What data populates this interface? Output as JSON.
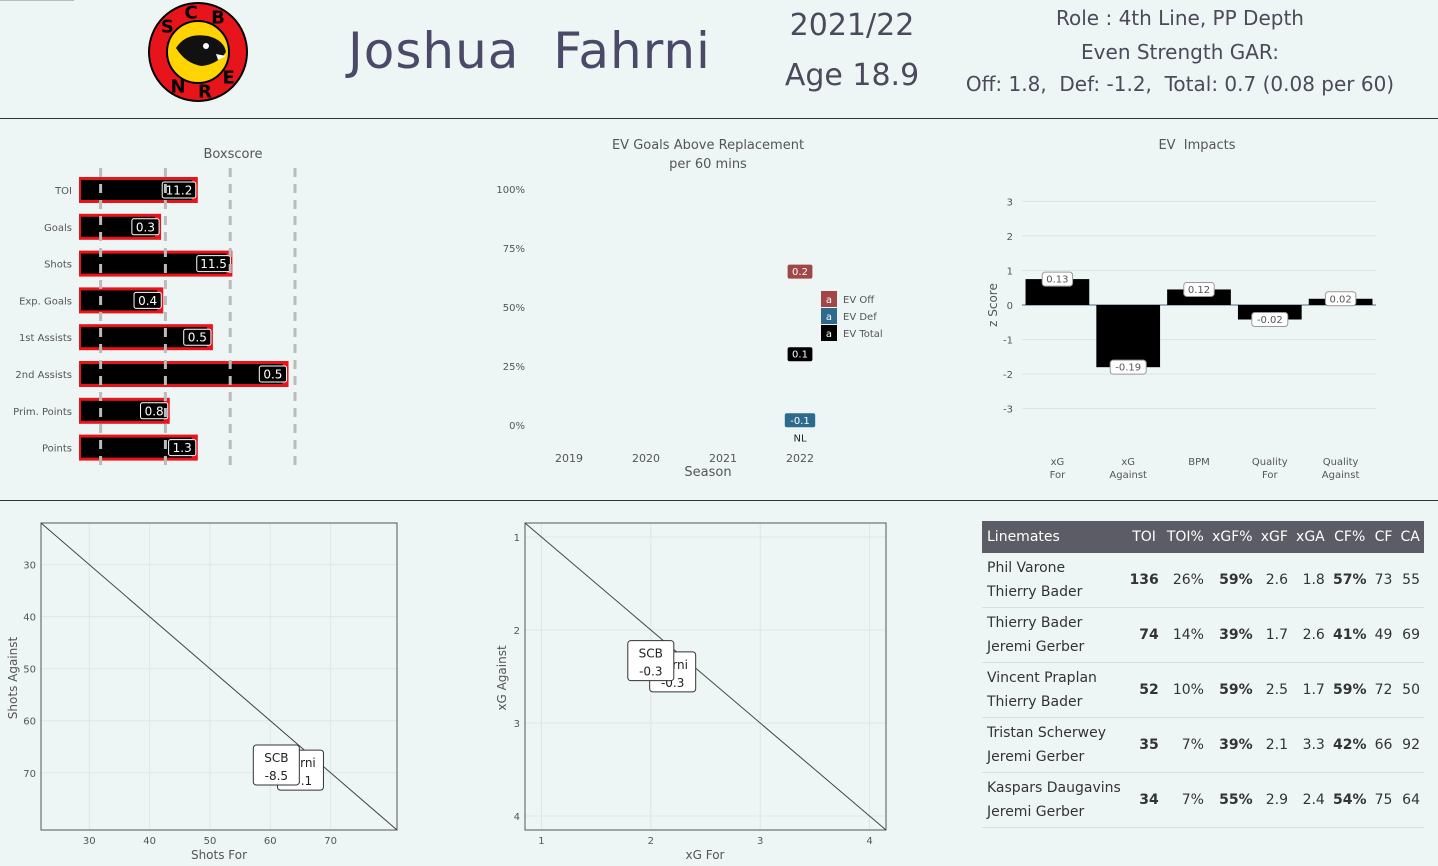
{
  "header": {
    "team_logo": "SC Bern bear logo",
    "logo_letters": [
      "S",
      "C",
      "B",
      "E",
      "R",
      "N"
    ],
    "player_name": "Joshua  Fahrni",
    "season": "2021/22",
    "age": "Age 18.9",
    "role": "Role : 4th  Line,  PP  Depth",
    "gar_title": "Even Strength GAR:",
    "gar_values": "Off: 1.8,  Def: -1.2,  Total: 0.7 (0.08 per 60)"
  },
  "colors": {
    "red": "#e8141c",
    "black": "#000000",
    "ev_off": "#a04848",
    "ev_def": "#2e6a8e",
    "bg": "#eef5f5"
  },
  "boxscore": {
    "title": "Boxscore",
    "chart_data": {
      "type": "bar",
      "categories": [
        "TOI",
        "Goals",
        "Shots",
        "Exp. Goals",
        "1st Assists",
        "2nd Assists",
        "Prim. Points",
        "Points"
      ],
      "labels": [
        "11.2",
        "0.3",
        "11.5",
        "0.4",
        "0.5",
        "0.5",
        "0.8",
        "1.3"
      ],
      "percentile": [
        0.55,
        0.38,
        0.71,
        0.39,
        0.62,
        0.97,
        0.42,
        0.55
      ],
      "reference_lines": [
        0.1,
        0.4,
        0.7,
        1.0
      ]
    }
  },
  "gar_chart": {
    "title": "EV Goals Above Replacement",
    "subtitle": "per 60 mins",
    "xlabel": "Season",
    "chart_data": {
      "type": "scatter",
      "x_ticks": [
        "2019",
        "2020",
        "2021",
        "2022"
      ],
      "y_ticks": [
        "0%",
        "25%",
        "50%",
        "75%",
        "100%"
      ],
      "ylim": [
        0,
        100
      ],
      "points": [
        {
          "series": "EV Off",
          "season": "2022",
          "percentile": 65,
          "label": "0.2"
        },
        {
          "series": "EV Total",
          "season": "2022",
          "percentile": 30,
          "label": "0.1"
        },
        {
          "series": "EV Def",
          "season": "2022",
          "percentile": 2,
          "label": "-0.1"
        }
      ],
      "point_sub_label": "NL",
      "legend": [
        {
          "key": "a",
          "name": "EV Off"
        },
        {
          "key": "a",
          "name": "EV Def"
        },
        {
          "key": "a",
          "name": "EV Total"
        }
      ]
    }
  },
  "impacts": {
    "title": "EV  Impacts",
    "ylabel": "z Score",
    "chart_data": {
      "type": "bar",
      "categories": [
        [
          "xG",
          "For"
        ],
        [
          "xG",
          "Against"
        ],
        [
          "BPM"
        ],
        [
          "Quality",
          "For"
        ],
        [
          "Quality",
          "Against"
        ]
      ],
      "values": [
        0.75,
        -1.8,
        0.45,
        -0.42,
        0.18
      ],
      "labels": [
        "0.13",
        "-0.19",
        "0.12",
        "-0.02",
        "0.02"
      ],
      "ylim": [
        -3.3,
        3.3
      ],
      "y_ticks": [
        3,
        2,
        1,
        0,
        -1,
        -2,
        -3
      ]
    }
  },
  "shots_scatter": {
    "xlabel": "Shots For",
    "ylabel": "Shots Against",
    "chart_data": {
      "type": "scatter",
      "xlim": [
        22,
        81
      ],
      "ylim": [
        81,
        22
      ],
      "x_ticks": [
        30,
        40,
        50,
        60,
        70
      ],
      "y_ticks": [
        30,
        40,
        50,
        60,
        70
      ],
      "labels": [
        {
          "line1": "ahrni",
          "line2": "-5.1",
          "x": 65.0,
          "y": 69.5
        },
        {
          "line1": "SCB",
          "line2": "-8.5",
          "x": 61.0,
          "y": 68.5
        }
      ]
    }
  },
  "xg_scatter": {
    "xlabel": "xG For",
    "ylabel": "xG Against",
    "chart_data": {
      "type": "scatter",
      "xlim": [
        0.85,
        4.15
      ],
      "ylim": [
        4.15,
        0.85
      ],
      "x_ticks": [
        1,
        2,
        3,
        4
      ],
      "y_ticks": [
        1,
        2,
        3,
        4
      ],
      "labels": [
        {
          "line1": "ahrni",
          "line2": "-0.3",
          "x": 2.2,
          "y": 2.45
        },
        {
          "line1": "SCB",
          "line2": "-0.3",
          "x": 2.0,
          "y": 2.33
        }
      ]
    }
  },
  "linemates": {
    "headers": [
      "Linemates",
      "TOI",
      "TOI%",
      "xGF%",
      "xGF",
      "xGA",
      "CF%",
      "CF",
      "CA"
    ],
    "rows": [
      {
        "p1": "Phil Varone",
        "p2": "Thierry Bader",
        "toi": "136",
        "toi_pct": "26%",
        "xgf_pct": "59%",
        "xgf": "2.6",
        "xga": "1.8",
        "cf_pct": "57%",
        "cf": "73",
        "ca": "55"
      },
      {
        "p1": "Thierry Bader",
        "p2": "Jeremi Gerber",
        "toi": "74",
        "toi_pct": "14%",
        "xgf_pct": "39%",
        "xgf": "1.7",
        "xga": "2.6",
        "cf_pct": "41%",
        "cf": "49",
        "ca": "69"
      },
      {
        "p1": "Vincent Praplan",
        "p2": "Thierry Bader",
        "toi": "52",
        "toi_pct": "10%",
        "xgf_pct": "59%",
        "xgf": "2.5",
        "xga": "1.7",
        "cf_pct": "59%",
        "cf": "72",
        "ca": "50"
      },
      {
        "p1": "Tristan Scherwey",
        "p2": "Jeremi Gerber",
        "toi": "35",
        "toi_pct": "7%",
        "xgf_pct": "39%",
        "xgf": "2.1",
        "xga": "3.3",
        "cf_pct": "42%",
        "cf": "66",
        "ca": "92"
      },
      {
        "p1": "Kaspars Daugavins",
        "p2": "Jeremi Gerber",
        "toi": "34",
        "toi_pct": "7%",
        "xgf_pct": "55%",
        "xgf": "2.9",
        "xga": "2.4",
        "cf_pct": "54%",
        "cf": "75",
        "ca": "64"
      }
    ]
  }
}
